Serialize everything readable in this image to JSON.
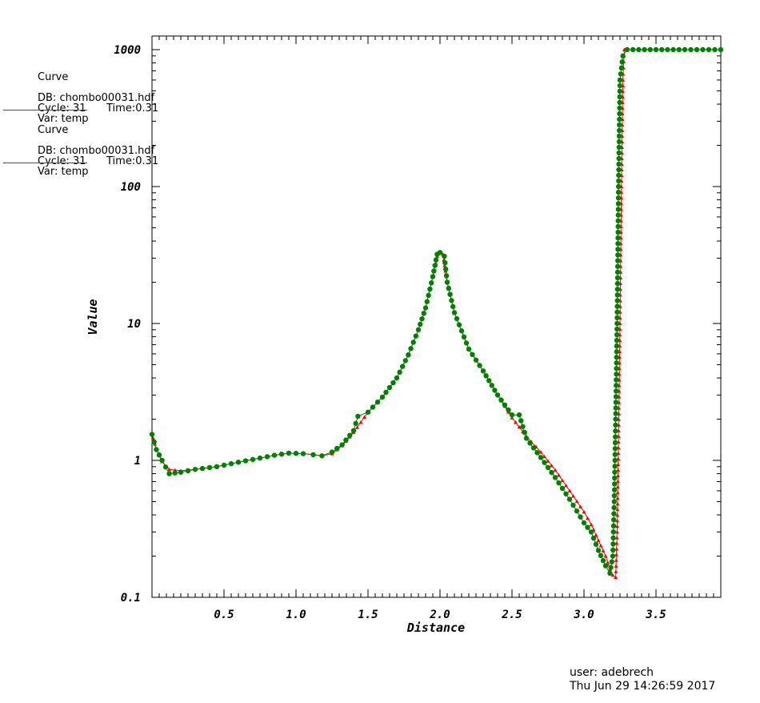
{
  "legend": [
    {
      "title": "Curve",
      "db": "DB: chombo00031.hdf",
      "cycle": "Cycle: 31",
      "time": "Time:0.31",
      "var": "Var: temp",
      "color": "#ff0000"
    },
    {
      "title": "Curve",
      "db": "DB: chombo00031.hdf",
      "cycle": "Cycle: 31",
      "time": "Time:0.31",
      "var": "Var: temp",
      "color": "#008000"
    }
  ],
  "user_info": {
    "user": "user: adebrech",
    "date": "Thu Jun 29 14:26:59 2017"
  },
  "chart_data": {
    "type": "line",
    "xlabel": "Distance",
    "ylabel": "Value",
    "xlim": [
      0.0,
      3.95
    ],
    "ylim": [
      0.1,
      1200
    ],
    "yscale": "log",
    "x_ticks": [
      0.5,
      1.0,
      1.5,
      2.0,
      2.5,
      3.0,
      3.5
    ],
    "x_tick_labels": [
      "0.5",
      "1.0",
      "1.5",
      "2.0",
      "2.5",
      "3.0",
      "3.5"
    ],
    "y_ticks": [
      0.1,
      1,
      10,
      100,
      1000
    ],
    "y_tick_labels": [
      "0.1",
      "1",
      "10",
      "100",
      "1000"
    ],
    "grid": false,
    "series": [
      {
        "color": "#ff0000",
        "marker": "triangle",
        "points": [
          [
            0.0,
            1.58
          ],
          [
            0.03,
            1.2
          ],
          [
            0.07,
            0.98
          ],
          [
            0.12,
            0.86
          ],
          [
            0.2,
            0.84
          ],
          [
            0.3,
            0.86
          ],
          [
            0.45,
            0.9
          ],
          [
            0.6,
            0.97
          ],
          [
            0.75,
            1.04
          ],
          [
            0.85,
            1.09
          ],
          [
            0.95,
            1.13
          ],
          [
            1.05,
            1.12
          ],
          [
            1.12,
            1.1
          ],
          [
            1.18,
            1.08
          ],
          [
            1.25,
            1.12
          ],
          [
            1.32,
            1.28
          ],
          [
            1.4,
            1.6
          ],
          [
            1.45,
            1.9
          ],
          [
            1.5,
            2.25
          ],
          [
            1.6,
            2.9
          ],
          [
            1.7,
            4.0
          ],
          [
            1.78,
            5.9
          ],
          [
            1.85,
            9.0
          ],
          [
            1.9,
            13.0
          ],
          [
            1.95,
            22.0
          ],
          [
            1.98,
            31.0
          ],
          [
            2.0,
            33.0
          ],
          [
            2.02,
            32.0
          ],
          [
            2.05,
            20.0
          ],
          [
            2.1,
            12.0
          ],
          [
            2.2,
            6.5
          ],
          [
            2.3,
            4.5
          ],
          [
            2.4,
            3.0
          ],
          [
            2.5,
            2.05
          ],
          [
            2.6,
            1.5
          ],
          [
            2.7,
            1.15
          ],
          [
            2.8,
            0.85
          ],
          [
            2.9,
            0.6
          ],
          [
            3.0,
            0.42
          ],
          [
            3.05,
            0.34
          ],
          [
            3.1,
            0.26
          ],
          [
            3.15,
            0.2
          ],
          [
            3.18,
            0.16
          ],
          [
            3.2,
            0.145
          ],
          [
            3.22,
            0.14
          ],
          [
            3.23,
            0.3
          ],
          [
            3.24,
            1.5
          ],
          [
            3.25,
            10.0
          ],
          [
            3.26,
            100.0
          ],
          [
            3.27,
            600.0
          ],
          [
            3.28,
            1000.0
          ],
          [
            3.3,
            1000.0
          ],
          [
            3.5,
            1000.0
          ],
          [
            3.7,
            1000.0
          ],
          [
            3.95,
            1000.0
          ]
        ]
      },
      {
        "color": "#008000",
        "marker": "circle",
        "points": [
          [
            0.0,
            1.55
          ],
          [
            0.03,
            1.2
          ],
          [
            0.07,
            1.0
          ],
          [
            0.12,
            0.8
          ],
          [
            0.2,
            0.82
          ],
          [
            0.3,
            0.86
          ],
          [
            0.45,
            0.9
          ],
          [
            0.6,
            0.97
          ],
          [
            0.75,
            1.04
          ],
          [
            0.85,
            1.09
          ],
          [
            0.95,
            1.13
          ],
          [
            1.05,
            1.12
          ],
          [
            1.12,
            1.1
          ],
          [
            1.18,
            1.08
          ],
          [
            1.25,
            1.15
          ],
          [
            1.32,
            1.3
          ],
          [
            1.4,
            1.65
          ],
          [
            1.43,
            2.1
          ],
          [
            1.5,
            2.25
          ],
          [
            1.6,
            2.9
          ],
          [
            1.7,
            4.0
          ],
          [
            1.78,
            5.9
          ],
          [
            1.85,
            9.0
          ],
          [
            1.9,
            13.0
          ],
          [
            1.95,
            22.0
          ],
          [
            1.98,
            32.0
          ],
          [
            2.0,
            33.0
          ],
          [
            2.03,
            31.0
          ],
          [
            2.05,
            20.0
          ],
          [
            2.1,
            12.0
          ],
          [
            2.2,
            6.5
          ],
          [
            2.3,
            4.5
          ],
          [
            2.4,
            3.0
          ],
          [
            2.5,
            2.15
          ],
          [
            2.55,
            2.15
          ],
          [
            2.6,
            1.45
          ],
          [
            2.7,
            1.05
          ],
          [
            2.8,
            0.75
          ],
          [
            2.9,
            0.52
          ],
          [
            3.0,
            0.35
          ],
          [
            3.05,
            0.3
          ],
          [
            3.1,
            0.22
          ],
          [
            3.15,
            0.17
          ],
          [
            3.18,
            0.15
          ],
          [
            3.2,
            0.2
          ],
          [
            3.21,
            0.5
          ],
          [
            3.22,
            2.0
          ],
          [
            3.23,
            10.0
          ],
          [
            3.24,
            100.0
          ],
          [
            3.25,
            600.0
          ],
          [
            3.27,
            900.0
          ],
          [
            3.3,
            1000.0
          ],
          [
            3.5,
            1000.0
          ],
          [
            3.7,
            1000.0
          ],
          [
            3.95,
            1000.0
          ]
        ]
      }
    ]
  }
}
